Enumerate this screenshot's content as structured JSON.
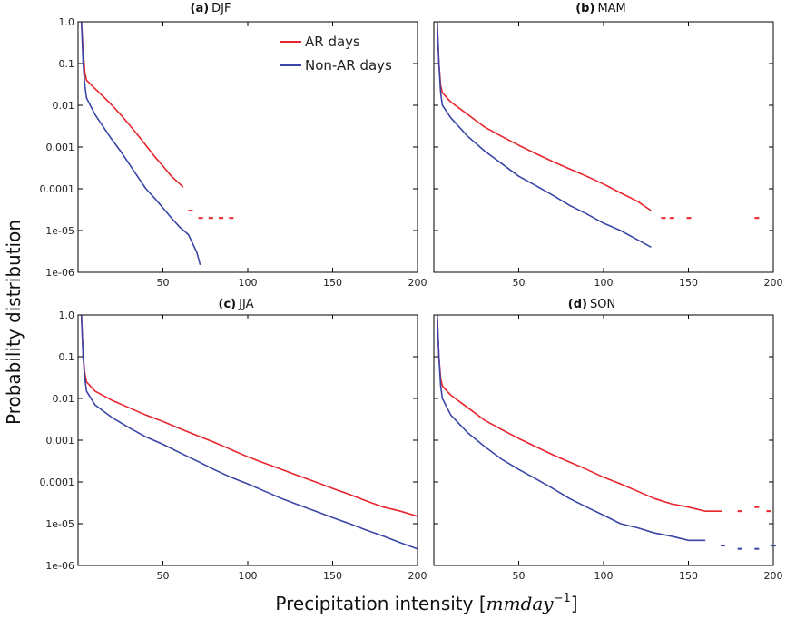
{
  "chart_data": {
    "type": "line",
    "ylabel": "Probability distribution",
    "xlabel": {
      "prefix": "Precipitation intensity [",
      "unit": "mmday",
      "exponent": "−1",
      "suffix": "]"
    },
    "x_ticks": [
      50,
      100,
      150,
      200
    ],
    "y_tick_labels": [
      "1.0",
      "0.1",
      "0.01",
      "0.001",
      "0.0001",
      "1e-05",
      "1e-06"
    ],
    "y_tick_values": [
      1.0,
      0.1,
      0.01,
      0.001,
      0.0001,
      1e-05,
      1e-06
    ],
    "xlim": [
      0,
      200
    ],
    "ylim": [
      1e-06,
      1.0
    ],
    "yscale": "log",
    "legend": {
      "placement": "top-right of panel (a)",
      "entries": [
        {
          "label": "AR days",
          "color": "#e8242c"
        },
        {
          "label": "Non-AR days",
          "color": "#3a46a6"
        }
      ]
    },
    "panels": [
      {
        "id": "a",
        "label": "(a)",
        "season": "DJF",
        "series": [
          {
            "name": "AR days",
            "color": "#e8242c",
            "points": [
              [
                2,
                1.0
              ],
              [
                3,
                0.2
              ],
              [
                4,
                0.06
              ],
              [
                5,
                0.04
              ],
              [
                10,
                0.025
              ],
              [
                15,
                0.016
              ],
              [
                20,
                0.01
              ],
              [
                25,
                0.006
              ],
              [
                30,
                0.0035
              ],
              [
                35,
                0.002
              ],
              [
                40,
                0.0011
              ],
              [
                45,
                0.0006
              ],
              [
                50,
                0.00035
              ],
              [
                55,
                0.0002
              ],
              [
                60,
                0.00013
              ],
              [
                62,
                0.00011
              ]
            ],
            "dots": [
              [
                66,
                3e-05
              ],
              [
                72,
                2e-05
              ],
              [
                78,
                2e-05
              ],
              [
                84,
                2e-05
              ],
              [
                90,
                2e-05
              ]
            ]
          },
          {
            "name": "Non-AR days",
            "color": "#3a46a6",
            "points": [
              [
                2,
                1.0
              ],
              [
                3,
                0.1
              ],
              [
                4,
                0.03
              ],
              [
                5,
                0.015
              ],
              [
                10,
                0.006
              ],
              [
                15,
                0.003
              ],
              [
                20,
                0.0015
              ],
              [
                25,
                0.0008
              ],
              [
                30,
                0.0004
              ],
              [
                35,
                0.0002
              ],
              [
                40,
                0.0001
              ],
              [
                45,
                6e-05
              ],
              [
                50,
                3.5e-05
              ],
              [
                55,
                2e-05
              ],
              [
                60,
                1.2e-05
              ],
              [
                65,
                8e-06
              ],
              [
                70,
                3e-06
              ],
              [
                72,
                1.5e-06
              ]
            ]
          }
        ]
      },
      {
        "id": "b",
        "label": "(b)",
        "season": "MAM",
        "series": [
          {
            "name": "AR days",
            "color": "#e8242c",
            "points": [
              [
                2,
                1.0
              ],
              [
                3,
                0.1
              ],
              [
                4,
                0.03
              ],
              [
                5,
                0.02
              ],
              [
                10,
                0.012
              ],
              [
                20,
                0.006
              ],
              [
                30,
                0.003
              ],
              [
                40,
                0.0018
              ],
              [
                50,
                0.0011
              ],
              [
                60,
                0.0007
              ],
              [
                70,
                0.00045
              ],
              [
                80,
                0.0003
              ],
              [
                90,
                0.0002
              ],
              [
                100,
                0.00013
              ],
              [
                110,
                8e-05
              ],
              [
                120,
                5e-05
              ],
              [
                128,
                3e-05
              ]
            ],
            "dots": [
              [
                135,
                2e-05
              ],
              [
                140,
                2e-05
              ],
              [
                150,
                2e-05
              ],
              [
                190,
                2e-05
              ]
            ]
          },
          {
            "name": "Non-AR days",
            "color": "#3a46a6",
            "points": [
              [
                2,
                1.0
              ],
              [
                3,
                0.1
              ],
              [
                4,
                0.02
              ],
              [
                5,
                0.01
              ],
              [
                10,
                0.005
              ],
              [
                20,
                0.0018
              ],
              [
                30,
                0.0008
              ],
              [
                40,
                0.0004
              ],
              [
                50,
                0.0002
              ],
              [
                60,
                0.00012
              ],
              [
                70,
                7e-05
              ],
              [
                80,
                4e-05
              ],
              [
                90,
                2.5e-05
              ],
              [
                100,
                1.5e-05
              ],
              [
                110,
                1e-05
              ],
              [
                120,
                6e-06
              ],
              [
                128,
                4e-06
              ]
            ]
          }
        ]
      },
      {
        "id": "c",
        "label": "(c)",
        "season": "JJA",
        "series": [
          {
            "name": "AR days",
            "color": "#e8242c",
            "points": [
              [
                2,
                1.0
              ],
              [
                3,
                0.1
              ],
              [
                4,
                0.04
              ],
              [
                5,
                0.025
              ],
              [
                10,
                0.015
              ],
              [
                20,
                0.009
              ],
              [
                30,
                0.006
              ],
              [
                40,
                0.004
              ],
              [
                50,
                0.0028
              ],
              [
                60,
                0.0019
              ],
              [
                70,
                0.0013
              ],
              [
                80,
                0.0009
              ],
              [
                90,
                0.0006
              ],
              [
                100,
                0.0004
              ],
              [
                110,
                0.00028
              ],
              [
                120,
                0.0002
              ],
              [
                130,
                0.00014
              ],
              [
                140,
                0.0001
              ],
              [
                150,
                7e-05
              ],
              [
                160,
                5e-05
              ],
              [
                170,
                3.5e-05
              ],
              [
                180,
                2.5e-05
              ],
              [
                190,
                2e-05
              ],
              [
                200,
                1.5e-05
              ]
            ]
          },
          {
            "name": "Non-AR days",
            "color": "#3a46a6",
            "points": [
              [
                2,
                1.0
              ],
              [
                3,
                0.1
              ],
              [
                4,
                0.03
              ],
              [
                5,
                0.015
              ],
              [
                10,
                0.007
              ],
              [
                20,
                0.0035
              ],
              [
                30,
                0.002
              ],
              [
                40,
                0.0012
              ],
              [
                50,
                0.0008
              ],
              [
                60,
                0.0005
              ],
              [
                70,
                0.00032
              ],
              [
                80,
                0.0002
              ],
              [
                90,
                0.00013
              ],
              [
                100,
                9e-05
              ],
              [
                110,
                6e-05
              ],
              [
                120,
                4e-05
              ],
              [
                130,
                2.8e-05
              ],
              [
                140,
                2e-05
              ],
              [
                150,
                1.4e-05
              ],
              [
                160,
                1e-05
              ],
              [
                170,
                7e-06
              ],
              [
                180,
                5e-06
              ],
              [
                190,
                3.5e-06
              ],
              [
                200,
                2.5e-06
              ]
            ]
          }
        ]
      },
      {
        "id": "d",
        "label": "(d)",
        "season": "SON",
        "series": [
          {
            "name": "AR days",
            "color": "#e8242c",
            "points": [
              [
                2,
                1.0
              ],
              [
                3,
                0.1
              ],
              [
                4,
                0.03
              ],
              [
                5,
                0.02
              ],
              [
                10,
                0.012
              ],
              [
                20,
                0.006
              ],
              [
                30,
                0.003
              ],
              [
                40,
                0.0018
              ],
              [
                50,
                0.0011
              ],
              [
                60,
                0.0007
              ],
              [
                70,
                0.00045
              ],
              [
                80,
                0.0003
              ],
              [
                90,
                0.0002
              ],
              [
                100,
                0.00013
              ],
              [
                110,
                9e-05
              ],
              [
                120,
                6e-05
              ],
              [
                130,
                4e-05
              ],
              [
                140,
                3e-05
              ],
              [
                150,
                2.5e-05
              ],
              [
                160,
                2e-05
              ],
              [
                170,
                2e-05
              ]
            ],
            "dots": [
              [
                180,
                2e-05
              ],
              [
                190,
                2.5e-05
              ],
              [
                197,
                2e-05
              ]
            ]
          },
          {
            "name": "Non-AR days",
            "color": "#3a46a6",
            "points": [
              [
                2,
                1.0
              ],
              [
                3,
                0.1
              ],
              [
                4,
                0.02
              ],
              [
                5,
                0.01
              ],
              [
                10,
                0.004
              ],
              [
                20,
                0.0015
              ],
              [
                30,
                0.0007
              ],
              [
                40,
                0.00035
              ],
              [
                50,
                0.0002
              ],
              [
                60,
                0.00012
              ],
              [
                70,
                7e-05
              ],
              [
                80,
                4e-05
              ],
              [
                90,
                2.5e-05
              ],
              [
                100,
                1.6e-05
              ],
              [
                110,
                1e-05
              ],
              [
                120,
                8e-06
              ],
              [
                130,
                6e-06
              ],
              [
                140,
                5e-06
              ],
              [
                150,
                4e-06
              ],
              [
                160,
                4e-06
              ]
            ],
            "dots": [
              [
                170,
                3e-06
              ],
              [
                180,
                2.5e-06
              ],
              [
                190,
                2.5e-06
              ],
              [
                200,
                3e-06
              ]
            ]
          }
        ]
      }
    ]
  }
}
